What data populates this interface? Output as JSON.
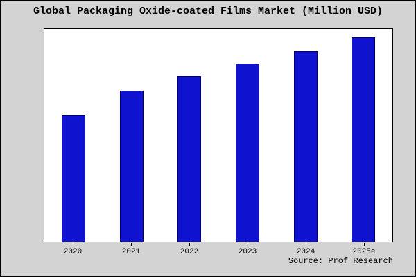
{
  "title": "Global Packaging Oxide-coated Films Market (Million USD)",
  "source": "Source: Prof Research",
  "colors": {
    "background": "#d3d3d3",
    "plot_background": "#ffffff",
    "bar_fill": "#0f12cf",
    "bar_border": "#000066"
  },
  "chart_data": {
    "type": "bar",
    "title": "Global Packaging Oxide-coated Films Market (Million USD)",
    "categories": [
      "2020",
      "2021",
      "2022",
      "2023",
      "2024",
      "2025e"
    ],
    "values": [
      62,
      74,
      81,
      87,
      93,
      100
    ],
    "xlabel": "",
    "ylabel": "",
    "ylim": [
      0,
      104
    ],
    "grid": false,
    "legend": false,
    "annotations": [
      "Source: Prof Research"
    ]
  }
}
